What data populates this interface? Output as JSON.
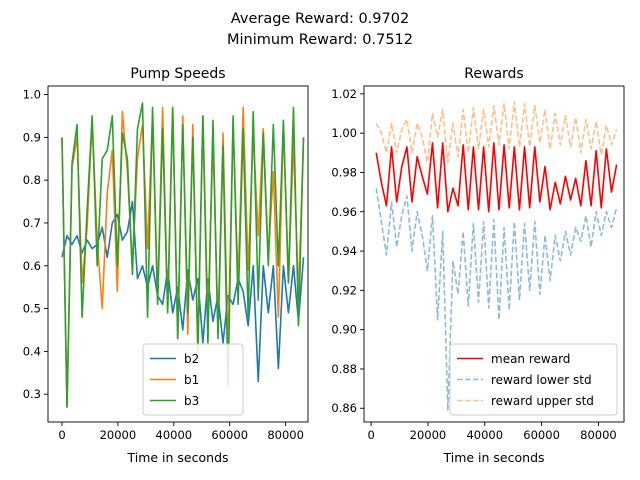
{
  "figure": {
    "suptitle_line1": "Average Reward: 0.9702",
    "suptitle_line2": "Minimum Reward: 0.7512"
  },
  "chart_data": [
    {
      "type": "line",
      "title": "Pump Speeds",
      "xlabel": "Time in seconds",
      "ylabel": "",
      "xlim": [
        -5000,
        88000
      ],
      "ylim": [
        0.235,
        1.02
      ],
      "xticks": [
        0,
        20000,
        40000,
        60000,
        80000
      ],
      "xtick_labels": [
        "0",
        "20000",
        "40000",
        "60000",
        "80000"
      ],
      "yticks": [
        0.3,
        0.4,
        0.5,
        0.6,
        0.7,
        0.8,
        0.9,
        1.0
      ],
      "ytick_labels": [
        "0.3",
        "0.4",
        "0.5",
        "0.6",
        "0.7",
        "0.8",
        "0.9",
        "1.0"
      ],
      "grid": false,
      "legend_position": "lower-right",
      "x": [
        0,
        1800,
        3600,
        5400,
        7200,
        9000,
        10800,
        12600,
        14400,
        16200,
        18000,
        19800,
        21600,
        23400,
        25200,
        27000,
        28800,
        30600,
        32400,
        34200,
        36000,
        37800,
        39600,
        41400,
        43200,
        45000,
        46800,
        48600,
        50400,
        52200,
        54000,
        55800,
        57600,
        59400,
        61200,
        63000,
        64800,
        66600,
        68400,
        70200,
        72000,
        73800,
        75600,
        77400,
        79200,
        81000,
        82800,
        84600,
        86400
      ],
      "series": [
        {
          "name": "b2",
          "color": "#1f77b4",
          "values": [
            0.62,
            0.67,
            0.65,
            0.67,
            0.63,
            0.66,
            0.64,
            0.65,
            0.69,
            0.62,
            0.7,
            0.72,
            0.66,
            0.68,
            0.75,
            0.57,
            0.6,
            0.55,
            0.6,
            0.53,
            0.51,
            0.59,
            0.49,
            0.55,
            0.45,
            0.59,
            0.52,
            0.57,
            0.42,
            0.57,
            0.47,
            0.53,
            0.42,
            0.53,
            0.51,
            0.57,
            0.54,
            0.46,
            0.6,
            0.33,
            0.6,
            0.49,
            0.6,
            0.36,
            0.6,
            0.49,
            0.6,
            0.47,
            0.62
          ]
        },
        {
          "name": "b1",
          "color": "#ff7f0e",
          "values": [
            0.9,
            0.27,
            0.83,
            0.9,
            0.56,
            0.69,
            0.94,
            0.66,
            0.5,
            0.77,
            0.87,
            0.54,
            0.96,
            0.82,
            0.6,
            0.85,
            0.93,
            0.64,
            0.95,
            0.52,
            0.97,
            0.5,
            0.97,
            0.43,
            0.95,
            0.44,
            0.93,
            0.4,
            0.95,
            0.47,
            0.9,
            0.45,
            0.91,
            0.4,
            0.93,
            0.56,
            0.97,
            0.59,
            0.91,
            0.67,
            0.92,
            0.62,
            0.82,
            0.48,
            0.93,
            0.56,
            0.89,
            0.53,
            0.9
          ]
        },
        {
          "name": "b3",
          "color": "#2ca02c",
          "values": [
            0.9,
            0.27,
            0.84,
            0.93,
            0.48,
            0.73,
            0.95,
            0.6,
            0.85,
            0.87,
            0.95,
            0.6,
            0.91,
            0.85,
            0.58,
            0.92,
            0.98,
            0.48,
            0.97,
            0.51,
            0.92,
            0.49,
            0.97,
            0.43,
            0.93,
            0.49,
            0.9,
            0.4,
            0.95,
            0.42,
            0.94,
            0.43,
            0.88,
            0.32,
            0.95,
            0.51,
            0.92,
            0.48,
            0.96,
            0.52,
            0.91,
            0.6,
            0.93,
            0.6,
            0.94,
            0.56,
            0.97,
            0.46,
            0.9
          ]
        }
      ]
    },
    {
      "type": "line",
      "title": "Rewards",
      "xlabel": "Time in seconds",
      "ylabel": "",
      "xlim": [
        -2500,
        89000
      ],
      "ylim": [
        0.853,
        1.024
      ],
      "xticks": [
        0,
        20000,
        40000,
        60000,
        80000
      ],
      "xtick_labels": [
        "0",
        "20000",
        "40000",
        "60000",
        "80000"
      ],
      "yticks": [
        0.86,
        0.88,
        0.9,
        0.92,
        0.94,
        0.96,
        0.98,
        1.0,
        1.02
      ],
      "ytick_labels": [
        "0.86",
        "0.88",
        "0.90",
        "0.92",
        "0.94",
        "0.96",
        "0.98",
        "1.00",
        "1.02"
      ],
      "grid": false,
      "legend_position": "lower-right",
      "x": [
        1800,
        3600,
        5400,
        7200,
        9000,
        10800,
        12600,
        14400,
        16200,
        18000,
        19800,
        21600,
        23400,
        25200,
        27000,
        28800,
        30600,
        32400,
        34200,
        36000,
        37800,
        39600,
        41400,
        43200,
        45000,
        46800,
        48600,
        50400,
        52200,
        54000,
        55800,
        57600,
        59400,
        61200,
        63000,
        64800,
        66600,
        68400,
        70200,
        72000,
        73800,
        75600,
        77400,
        79200,
        81000,
        82800,
        84600,
        86400
      ],
      "series": [
        {
          "name": "mean reward",
          "color": "#ff0000",
          "style": "solid",
          "values": [
            0.99,
            0.975,
            0.963,
            0.993,
            0.965,
            0.983,
            0.993,
            0.965,
            0.988,
            0.978,
            0.969,
            0.995,
            0.962,
            0.995,
            0.96,
            0.972,
            0.963,
            0.994,
            0.961,
            0.993,
            0.961,
            0.993,
            0.96,
            0.995,
            0.961,
            0.994,
            0.962,
            0.993,
            0.961,
            0.993,
            0.962,
            0.993,
            0.965,
            0.983,
            0.961,
            0.975,
            0.964,
            0.978,
            0.966,
            0.977,
            0.963,
            0.986,
            0.963,
            0.991,
            0.962,
            0.992,
            0.97,
            0.984
          ]
        },
        {
          "name": "reward lower std",
          "color": "#1f77b4",
          "style": "dashed",
          "alpha": 0.5,
          "values": [
            0.972,
            0.955,
            0.938,
            0.965,
            0.942,
            0.958,
            0.968,
            0.94,
            0.96,
            0.948,
            0.93,
            0.958,
            0.905,
            0.95,
            0.859,
            0.935,
            0.918,
            0.95,
            0.912,
            0.954,
            0.914,
            0.955,
            0.911,
            0.956,
            0.905,
            0.952,
            0.91,
            0.955,
            0.915,
            0.954,
            0.92,
            0.955,
            0.918,
            0.948,
            0.925,
            0.948,
            0.935,
            0.95,
            0.938,
            0.952,
            0.945,
            0.958,
            0.942,
            0.96,
            0.948,
            0.96,
            0.952,
            0.962
          ]
        },
        {
          "name": "reward upper std",
          "color": "#ff7f0e",
          "style": "dashed",
          "alpha": 0.5,
          "values": [
            1.005,
            1.0,
            0.99,
            1.005,
            0.99,
            1.002,
            1.007,
            0.99,
            1.005,
            0.998,
            0.985,
            1.01,
            0.998,
            1.012,
            0.985,
            1.005,
            0.988,
            1.012,
            0.99,
            1.013,
            0.992,
            1.012,
            0.993,
            1.014,
            0.994,
            1.015,
            0.992,
            1.016,
            0.993,
            1.015,
            0.993,
            1.014,
            0.995,
            1.012,
            0.992,
            1.01,
            0.994,
            1.009,
            0.993,
            1.008,
            0.99,
            1.007,
            0.992,
            1.006,
            0.989,
            1.004,
            0.994,
            1.002
          ]
        }
      ]
    }
  ]
}
